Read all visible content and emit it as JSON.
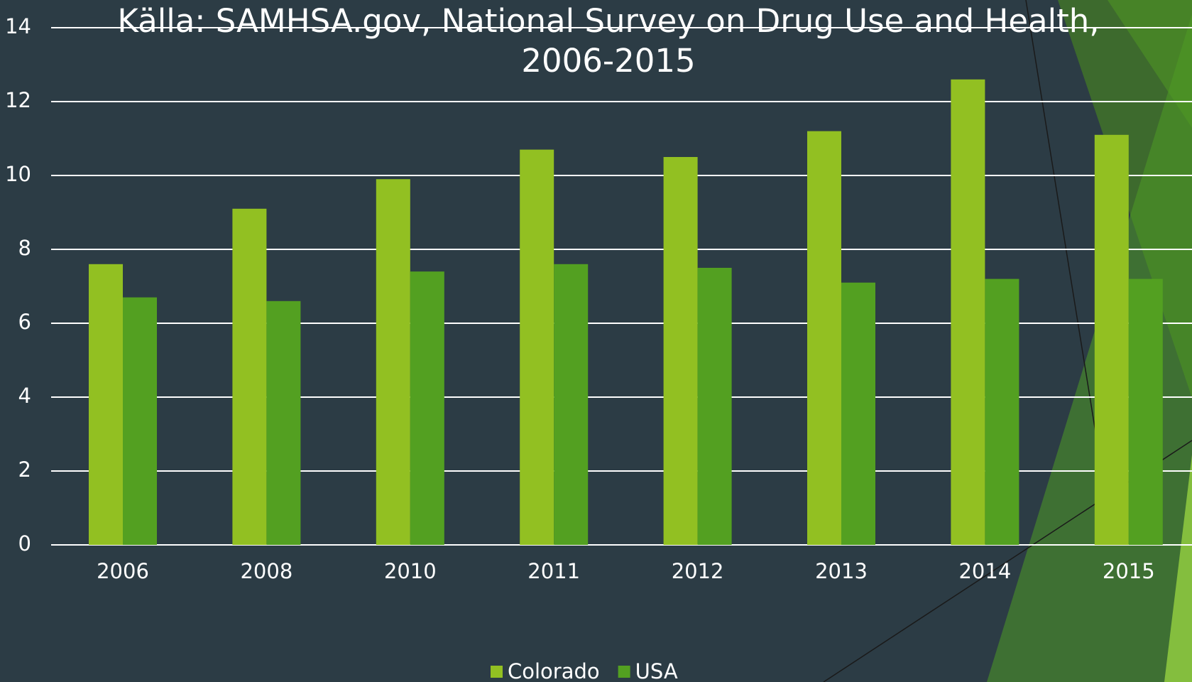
{
  "chart_data": {
    "type": "bar",
    "title": "Källa: SAMHSA.gov, National Survey on Drug Use and Health, 2006-2015",
    "categories": [
      "2006",
      "2008",
      "2010",
      "2011",
      "2012",
      "2013",
      "2014",
      "2015"
    ],
    "series": [
      {
        "name": "Colorado",
        "color": "#92c022",
        "values": [
          7.6,
          9.1,
          9.9,
          10.7,
          10.5,
          11.2,
          12.6,
          11.1
        ]
      },
      {
        "name": "USA",
        "color": "#53a021",
        "values": [
          6.7,
          6.6,
          7.4,
          7.6,
          7.5,
          7.1,
          7.2,
          7.2
        ]
      }
    ],
    "ylim": [
      0,
      14
    ],
    "yticks": [
      0,
      2,
      4,
      6,
      8,
      10,
      12,
      14
    ],
    "grid": true,
    "legend": "bottom"
  }
}
